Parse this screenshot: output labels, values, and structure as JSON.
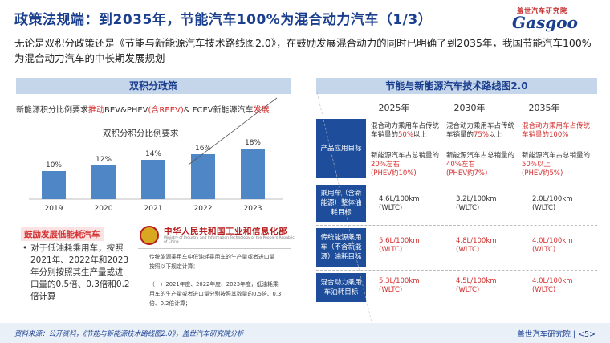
{
  "title": "政策法规端：到2035年，节能汽车100%为混合动力汽车（1/3）",
  "logo": {
    "cn": "盖世汽车研究院",
    "en": "Gasgoo"
  },
  "intro": "无论是双积分政策还是《节能与新能源汽车技术路线图2.0》，在鼓励发展混合动力的同时已明确了到2035年，我国节能汽车100%为混合动力汽车的中长期发展规划",
  "left_panel": {
    "header": "双积分政策",
    "requirement_prefix": "新能源积分比例要求",
    "requirement_red1": "推动",
    "requirement_mid": "BEV&PHEV",
    "requirement_red2": "(含REEV)",
    "requirement_suffix": "& FCEV新能源汽车",
    "requirement_red3": "发展",
    "sub_header": "鼓励发展低能耗汽车",
    "bullet": "对于低油耗乘用车，按照2021年、2022年和2023年分别按照其生产量或进口量的0.5倍、0.3倍和0.2倍计算"
  },
  "chart_data": {
    "type": "bar",
    "title": "双积分积分比例要求",
    "categories": [
      "2019",
      "2020",
      "2021",
      "2022",
      "2023"
    ],
    "values": [
      10,
      12,
      14,
      16,
      18
    ],
    "labels": [
      "10%",
      "12%",
      "14%",
      "16%",
      "18%"
    ],
    "color": "#4f86c6"
  },
  "miit": {
    "name": "中华人民共和国工业和信息化部",
    "en": "Ministry of Industry and Information Technology of the People's Republic of China",
    "line1": "传统能源乘用车中低油耗乘用车的生产量或者进口量",
    "line2": "按照以下规定计算：",
    "line3": "（一）2021年度、2022年度、2023年度，低油耗乘",
    "line4": "用车的生产量或者进口量分别按照其数量的0.5倍、0.3",
    "line5": "倍、0.2倍计算；"
  },
  "right_panel": {
    "header": "节能与新能源汽车技术路线图2.0",
    "years": [
      "2025年",
      "2030年",
      "2035年"
    ],
    "rows": [
      {
        "label": "产品应用目标",
        "cells": [
          {
            "a": "混合动力乘用车占传统车销量的",
            "a_hl": "50%",
            "a_tail": "以上",
            "b": "新能源汽车占总销量的",
            "b_hl": "20%左右",
            "b_tail": "(PHEV约10%)"
          },
          {
            "a": "混合动力乘用车占传统车销量的",
            "a_hl": "75%",
            "a_tail": "以上",
            "b": "新能源汽车占总销量的",
            "b_hl": "40%左右",
            "b_tail": "(PHEV约7%)"
          },
          {
            "a": "混合动力乘用车占传统车销量的100%",
            "a_hl": "",
            "a_tail": "",
            "b": "新能源汽车占总销量的",
            "b_hl": "50%以上",
            "b_tail": "(PHEV约5%)"
          }
        ]
      },
      {
        "label": "乘用车（含新能源）整体油耗目标",
        "values": [
          [
            "4.6L/100km",
            "(WLTC)"
          ],
          [
            "3.2L/100km",
            "(WLTC)"
          ],
          [
            "2.0L/100km",
            "(WLTC)"
          ]
        ]
      },
      {
        "label": "传统能源乘用车（不含新能源）油耗目标",
        "values": [
          [
            "5.6L/100km",
            "(WLTC)"
          ],
          [
            "4.8L/100km",
            "(WLTC)"
          ],
          [
            "4.0L/100km",
            "(WLTC)"
          ]
        ]
      },
      {
        "label": "混合动力乘用车油耗目标",
        "values": [
          [
            "5.3L/100km",
            "(WLTC)"
          ],
          [
            "4.5L/100km",
            "(WLTC)"
          ],
          [
            "4.0L/100km",
            "(WLTC)"
          ]
        ]
      }
    ]
  },
  "footer": {
    "source": "资料来源：公开资料，《节能与新能源技术路线图2.0》，盖世汽车研究院分析",
    "brand": "盖世汽车研究院",
    "page": "5"
  },
  "colors": {
    "accent": "#1b3f8f",
    "red": "#d32f2f",
    "bar": "#4f86c6",
    "rowlabel": "#1e4e9b",
    "header_bg": "#c5d5ea"
  }
}
